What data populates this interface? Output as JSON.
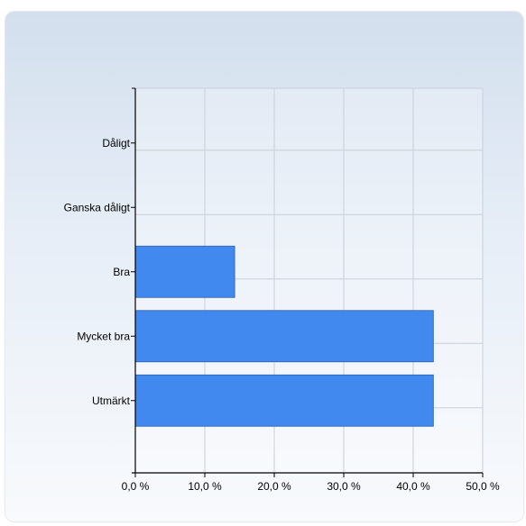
{
  "chart_data": {
    "type": "bar",
    "orientation": "horizontal",
    "categories": [
      "Dåligt",
      "Ganska dåligt",
      "Bra",
      "Mycket bra",
      "Utmärkt"
    ],
    "values": [
      0,
      0,
      14.3,
      42.9,
      42.9
    ],
    "xlim": [
      0,
      50
    ],
    "xticks": [
      "0,0 %",
      "10,0 %",
      "20,0 %",
      "30,0 %",
      "40,0 %",
      "50,0 %"
    ],
    "grid": true,
    "bar_color": "#4189ef",
    "title": "",
    "xlabel": "",
    "ylabel": ""
  }
}
